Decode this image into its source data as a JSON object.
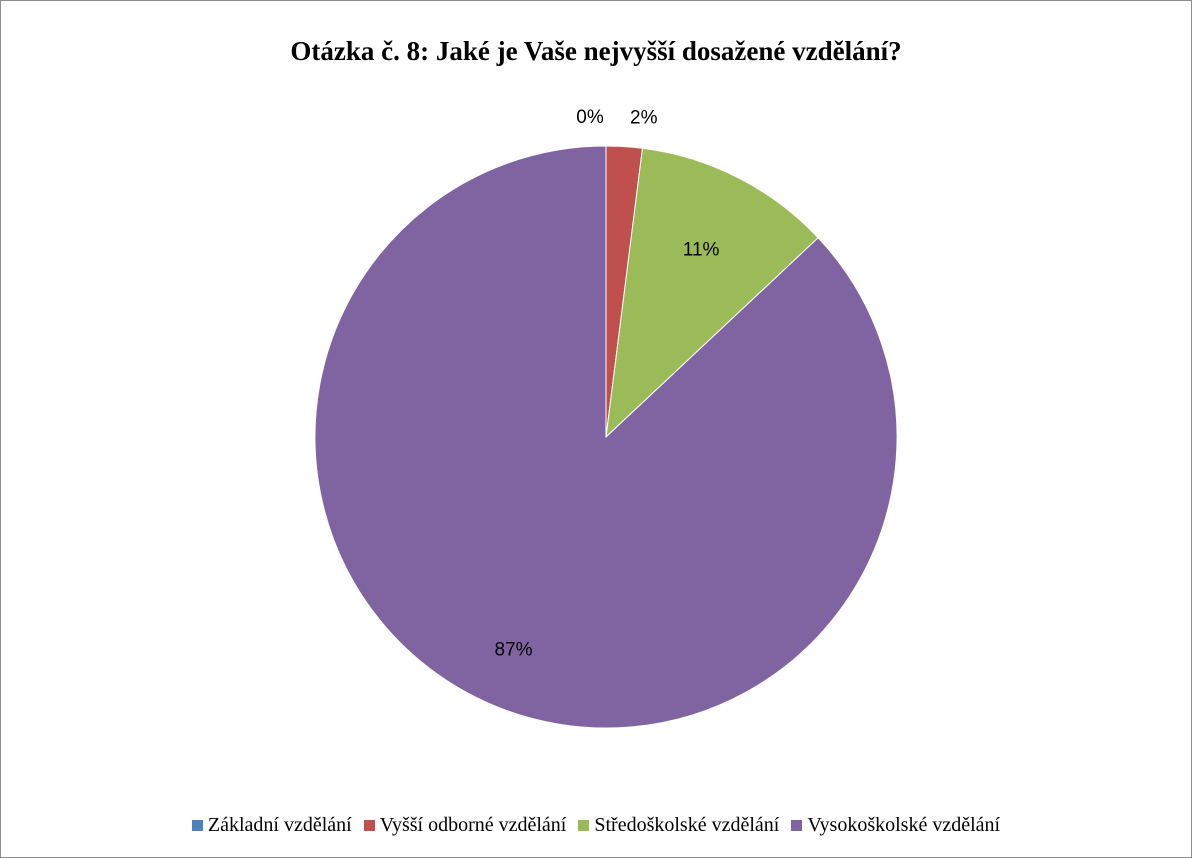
{
  "chart_data": {
    "type": "pie",
    "title": "Otázka č. 8: Jaké je Vaše nejvyšší dosažené vzdělání?",
    "categories": [
      "Základní vzdělání",
      "Vyšší odborné vzdělání",
      "Středoškolské vzdělání",
      "Vysokoškolské vzdělání"
    ],
    "values": [
      0,
      2,
      11,
      87
    ],
    "data_labels": [
      "0%",
      "2%",
      "11%",
      "87%"
    ],
    "colors": [
      "#4F81BD",
      "#C0504D",
      "#9BBB59",
      "#8064A2"
    ],
    "legend_position": "bottom"
  }
}
